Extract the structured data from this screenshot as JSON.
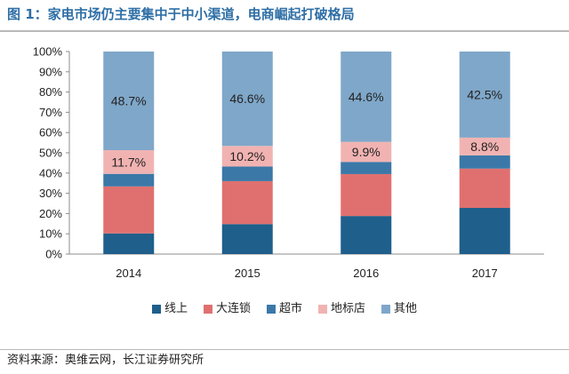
{
  "header": {
    "title": "图 1：家电市场仍主要集中于中小渠道，电商崛起打破格局"
  },
  "footer": {
    "source": "资料来源：奥维云网，长江证券研究所"
  },
  "colors": {
    "title": "#2f6fa6",
    "rule": "#b9b9b9"
  },
  "chart_data": {
    "type": "bar",
    "stacked": true,
    "categories": [
      "2014",
      "2015",
      "2016",
      "2017"
    ],
    "ylim": [
      0,
      100
    ],
    "yticks": [
      "0%",
      "10%",
      "20%",
      "30%",
      "40%",
      "50%",
      "60%",
      "70%",
      "80%",
      "90%",
      "100%"
    ],
    "legend_position": "bottom",
    "grid": false,
    "series": [
      {
        "name": "线上",
        "color": "#1f5f8b",
        "values": [
          10.2,
          14.8,
          18.8,
          22.8
        ],
        "label": false
      },
      {
        "name": "大连锁",
        "color": "#e0706f",
        "values": [
          23.2,
          21.2,
          20.7,
          19.4
        ],
        "label": false
      },
      {
        "name": "超市",
        "color": "#3b78a8",
        "values": [
          6.2,
          7.2,
          6.0,
          6.5
        ],
        "label": false
      },
      {
        "name": "地标店",
        "color": "#f1b3b2",
        "values": [
          11.7,
          10.2,
          9.9,
          8.8
        ],
        "label": true
      },
      {
        "name": "其他",
        "color": "#7fa7c9",
        "values": [
          48.7,
          46.6,
          44.6,
          42.5
        ],
        "label": true
      }
    ],
    "data_labels": [
      [
        "48.7%",
        "46.6%",
        "44.6%",
        "42.5%"
      ],
      [
        "11.7%",
        "10.2%",
        "9.9%",
        "8.8%"
      ]
    ]
  }
}
